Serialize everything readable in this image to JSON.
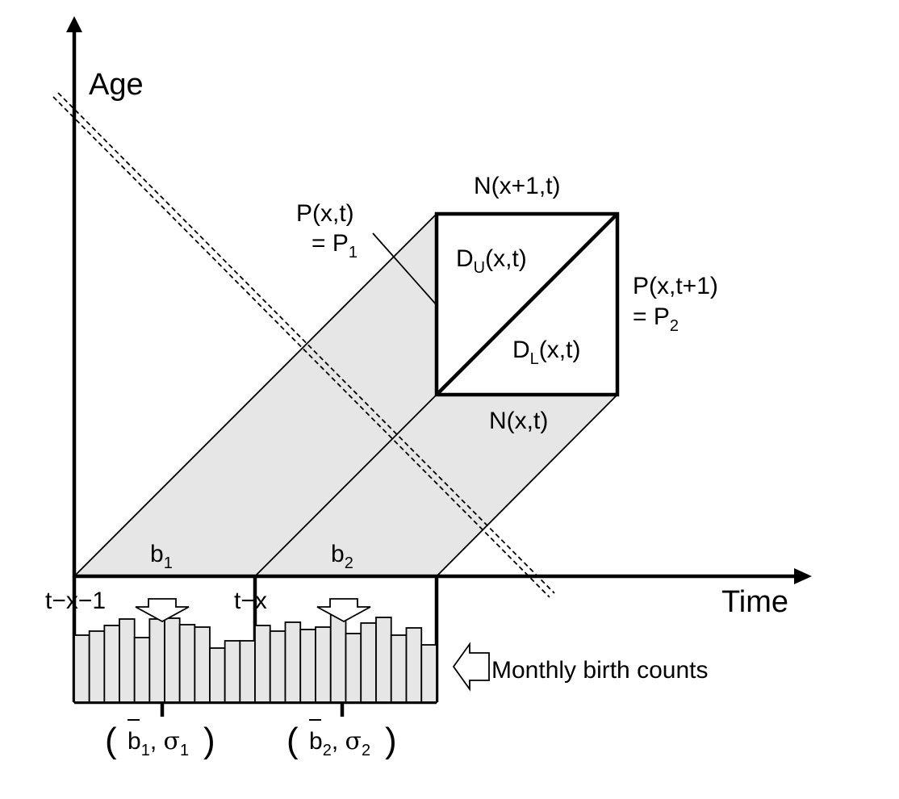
{
  "axes": {
    "y_label": "Age",
    "x_label": "Time"
  },
  "cells": {
    "top_edge": "N(x+1,t)",
    "bottom_edge": "N(x,t)",
    "upper_triangle": {
      "main": "D",
      "sub": "U",
      "tail": "(x,t)"
    },
    "lower_triangle": {
      "main": "D",
      "sub": "L",
      "tail": "(x,t)"
    }
  },
  "populations": {
    "p1_line1": "P(x,t)",
    "p1_line2": {
      "main": "= P",
      "sub": "1"
    },
    "p2_line1": "P(x,t+1)",
    "p2_line2": {
      "main": "= P",
      "sub": "2"
    }
  },
  "births": {
    "b1": {
      "main": "b",
      "sub": "1"
    },
    "b2": {
      "main": "b",
      "sub": "2"
    },
    "tick_left": "t−x−1",
    "tick_mid": "t−x",
    "stats1": {
      "b": "b",
      "b_sub": "1",
      "sigma": "σ",
      "sigma_sub": "1"
    },
    "stats2": {
      "b": "b",
      "b_sub": "2",
      "sigma": "σ",
      "sigma_sub": "2"
    },
    "monthly_label": "Monthly birth counts",
    "histogram_1": [
      83,
      88,
      95,
      103,
      80,
      103,
      104,
      96,
      93,
      67,
      76,
      76
    ],
    "histogram_2": [
      95,
      88,
      99,
      90,
      93,
      108,
      85,
      98,
      105,
      83,
      92,
      71
    ]
  }
}
